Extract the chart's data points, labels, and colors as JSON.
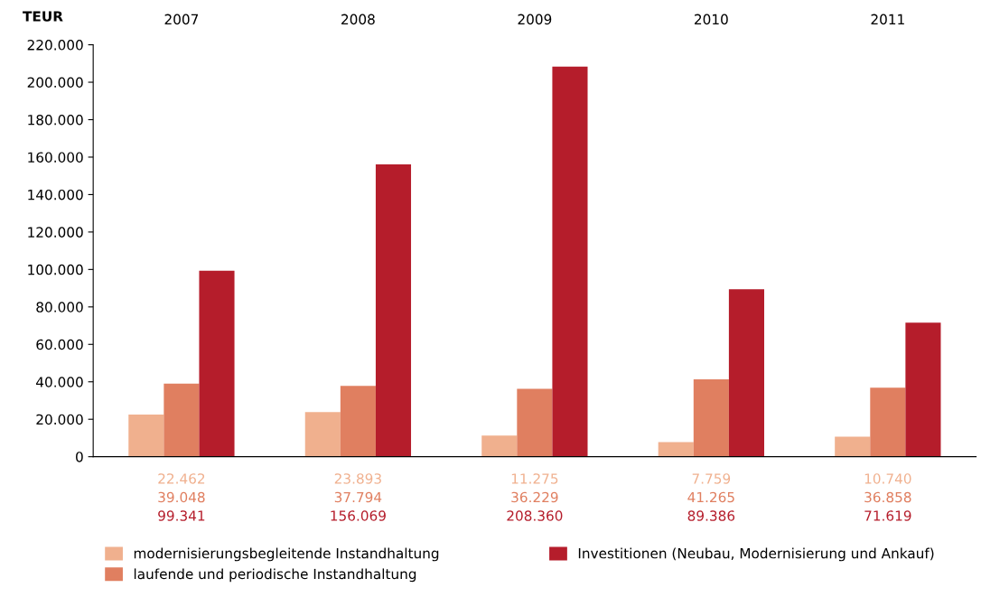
{
  "chart_data": {
    "type": "bar",
    "ylabel": "TEUR",
    "categories": [
      "2007",
      "2008",
      "2009",
      "2010",
      "2011"
    ],
    "series": [
      {
        "name": "modernisierungsbegleitende Instandhaltung",
        "color": "#f0b08e",
        "values": [
          22462,
          23893,
          11275,
          7759,
          10740
        ],
        "value_labels": [
          "22.462",
          "23.893",
          "11.275",
          "7.759",
          "10.740"
        ]
      },
      {
        "name": "laufende und periodische Instandhaltung",
        "color": "#e07f60",
        "values": [
          39048,
          37794,
          36229,
          41265,
          36858
        ],
        "value_labels": [
          "39.048",
          "37.794",
          "36.229",
          "41.265",
          "36.858"
        ]
      },
      {
        "name": "Investitionen (Neubau, Modernisierung und Ankauf)",
        "color": "#b51d2b",
        "values": [
          99341,
          156069,
          208360,
          89386,
          71619
        ],
        "value_labels": [
          "99.341",
          "156.069",
          "208.360",
          "89.386",
          "71.619"
        ]
      }
    ],
    "ylim": [
      0,
      220000
    ],
    "yticks": [
      {
        "value": 0,
        "label": "0"
      },
      {
        "value": 20000,
        "label": "20.000"
      },
      {
        "value": 40000,
        "label": "40.000"
      },
      {
        "value": 60000,
        "label": "60.000"
      },
      {
        "value": 80000,
        "label": "80.000"
      },
      {
        "value": 100000,
        "label": "100.000"
      },
      {
        "value": 120000,
        "label": "120.000"
      },
      {
        "value": 140000,
        "label": "140.000"
      },
      {
        "value": 160000,
        "label": "160.000"
      },
      {
        "value": 180000,
        "label": "180.000"
      },
      {
        "value": 200000,
        "label": "200.000"
      },
      {
        "value": 220000,
        "label": "220.000"
      }
    ],
    "grid": false,
    "legend": "bottom"
  }
}
